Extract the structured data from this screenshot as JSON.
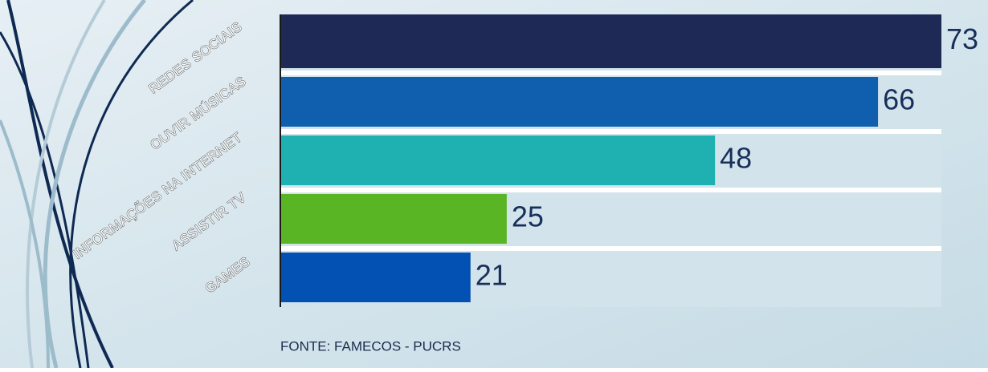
{
  "chart_data": {
    "type": "bar",
    "orientation": "horizontal",
    "categories": [
      "REDES SOCIAIS",
      "OUVIR MÚSICAS",
      "INFORMAÇÕES NA INTERNET",
      "ASSISTIR TV",
      "GAMES"
    ],
    "values": [
      73,
      66,
      48,
      25,
      21
    ],
    "colors": [
      "#1e2a55",
      "#0f5fae",
      "#1fb1b1",
      "#5ab524",
      "#0351b3"
    ],
    "xlim": [
      0,
      73
    ],
    "source": "FONTE: FAMECOS - PUCRS"
  }
}
